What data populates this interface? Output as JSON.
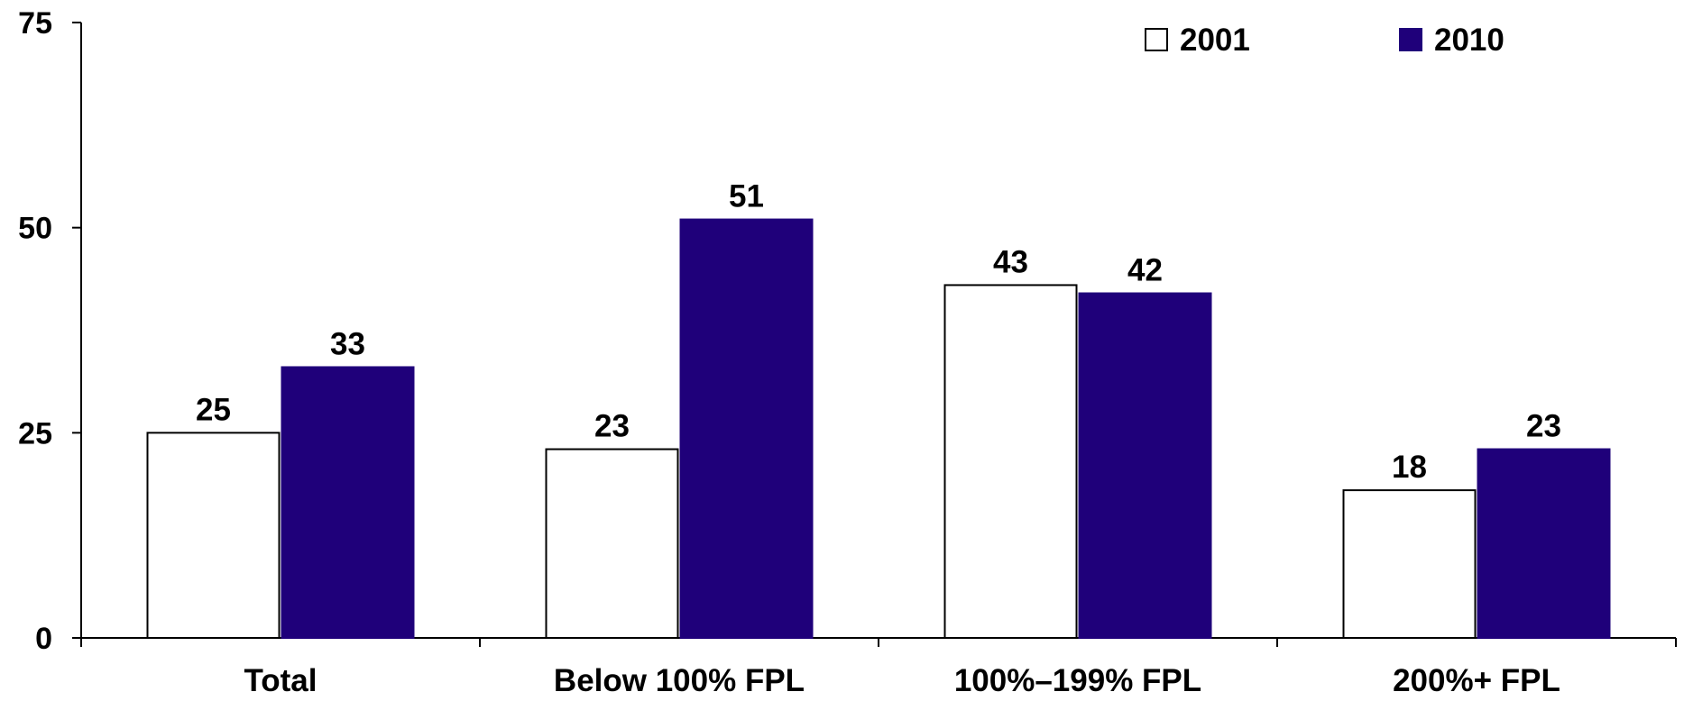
{
  "chart_data": {
    "type": "bar",
    "title": "",
    "xlabel": "",
    "ylabel": "",
    "categories": [
      "Total",
      "Below 100% FPL",
      "100%–199% FPL",
      "200%+ FPL"
    ],
    "series": [
      {
        "name": "2001",
        "values": [
          25,
          23,
          43,
          18
        ],
        "color": "#ffffff",
        "stroke": "#000000"
      },
      {
        "name": "2010",
        "values": [
          33,
          51,
          42,
          23
        ],
        "color": "#1f007a",
        "stroke": "#1f007a"
      }
    ],
    "ylim": [
      0,
      75
    ],
    "yticks": [
      0,
      25,
      50,
      75
    ],
    "grid": false,
    "legend_position": "top-right",
    "data_labels": true
  }
}
